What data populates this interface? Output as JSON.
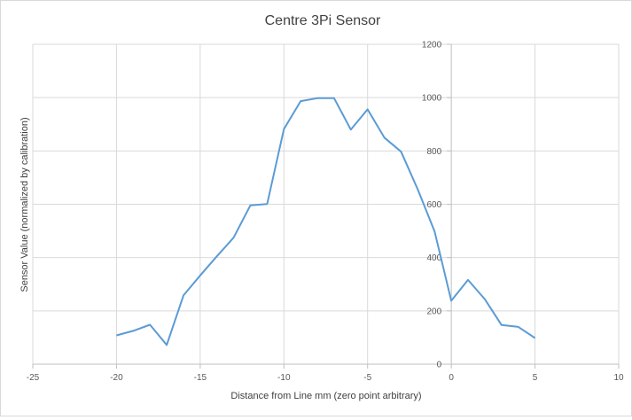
{
  "chart_data": {
    "type": "line",
    "title": "Centre 3Pi Sensor",
    "xlabel": "Distance from Line mm (zero point arbitrary)",
    "ylabel": "Sensor Value (normalized by calibration)",
    "xlim": [
      -25,
      10
    ],
    "ylim": [
      0,
      1200
    ],
    "x_ticks": [
      -25,
      -20,
      -15,
      -10,
      -5,
      0,
      5,
      10
    ],
    "y_ticks": [
      0,
      200,
      400,
      600,
      800,
      1000,
      1200
    ],
    "x_tick_labels": [
      "-25",
      "-20",
      "-15",
      "-10",
      "-5",
      "0",
      "5",
      "10"
    ],
    "y_tick_labels": [
      "0",
      "200",
      "400",
      "600",
      "800",
      "1000",
      "1200"
    ],
    "grid": true,
    "legend": "none",
    "y_axis_position": "x=0",
    "series": [
      {
        "color": "#5b9bd5",
        "x": [
          -20,
          -19,
          -18,
          -17,
          -16,
          -15,
          -14,
          -13,
          -12,
          -11,
          -10,
          -9,
          -8,
          -7,
          -6,
          -5,
          -4,
          -3,
          -2,
          -1,
          0,
          1,
          2,
          3,
          4,
          5
        ],
        "y": [
          108,
          125,
          148,
          72,
          258,
          333,
          405,
          475,
          596,
          601,
          882,
          987,
          998,
          998,
          880,
          956,
          850,
          797,
          655,
          498,
          238,
          316,
          244,
          147,
          140,
          98
        ]
      }
    ]
  }
}
